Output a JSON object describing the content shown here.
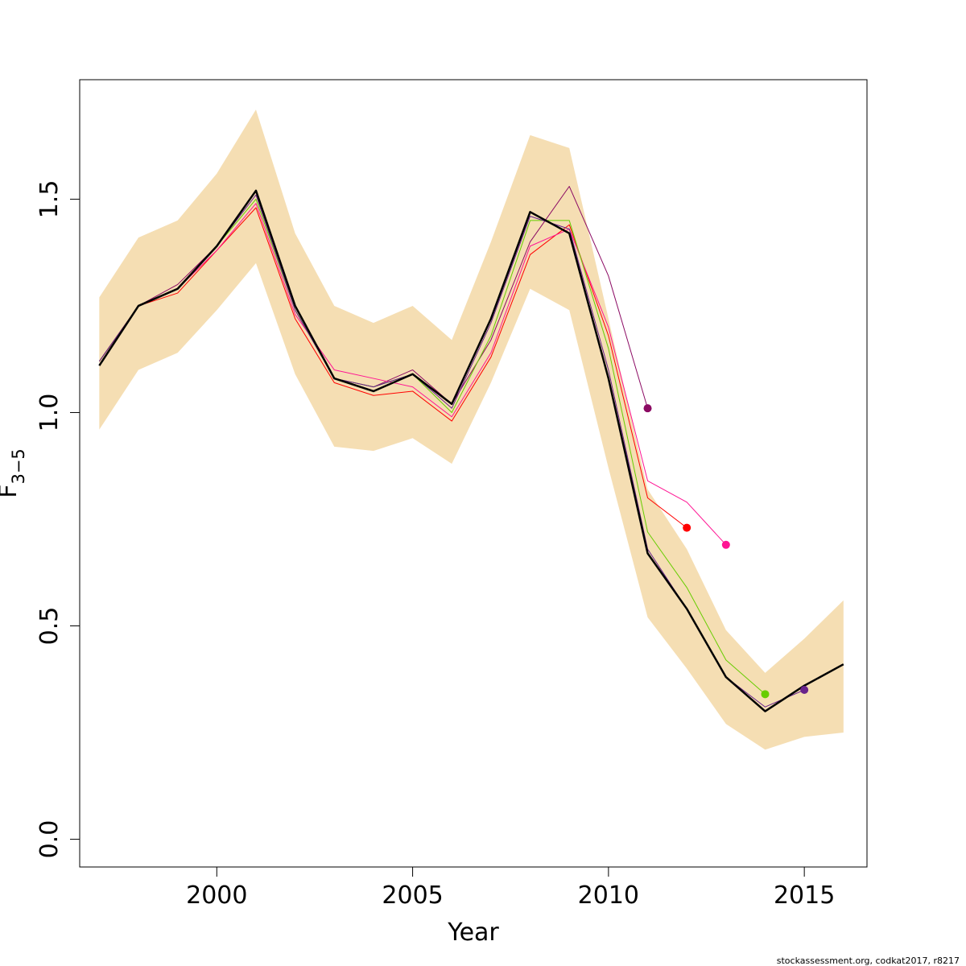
{
  "chart_data": {
    "type": "line",
    "xlabel": "Year",
    "ylabel": "F",
    "ylabel_sub": "3−5",
    "xlim": [
      1996.5,
      2016.6
    ],
    "ylim": [
      -0.065,
      1.78
    ],
    "x_ticks": [
      2000,
      2005,
      2010,
      2015
    ],
    "y_ticks": [
      0.0,
      0.5,
      1.0,
      1.5
    ],
    "y_tick_labels": [
      "0.0",
      "0.5",
      "1.0",
      "1.5"
    ],
    "credit": "stockassessment.org, codkat2017, r8217",
    "band": {
      "color": "#f5deb3",
      "x": [
        1997,
        1998,
        1999,
        2000,
        2001,
        2002,
        2003,
        2004,
        2005,
        2006,
        2007,
        2008,
        2009,
        2010,
        2011,
        2012,
        2013,
        2014,
        2015,
        2016
      ],
      "upper": [
        1.27,
        1.41,
        1.45,
        1.56,
        1.71,
        1.42,
        1.25,
        1.21,
        1.25,
        1.17,
        1.4,
        1.65,
        1.62,
        1.22,
        0.82,
        0.68,
        0.49,
        0.39,
        0.47,
        0.56
      ],
      "lower": [
        0.96,
        1.1,
        1.14,
        1.24,
        1.35,
        1.09,
        0.92,
        0.91,
        0.94,
        0.88,
        1.07,
        1.29,
        1.24,
        0.87,
        0.52,
        0.4,
        0.27,
        0.21,
        0.24,
        0.25
      ]
    },
    "series": [
      {
        "color": "#8b0a63",
        "width": 1,
        "marker": true,
        "x": [
          1997,
          1998,
          1999,
          2000,
          2001,
          2002,
          2003,
          2004,
          2005,
          2006,
          2007,
          2008,
          2009,
          2010,
          2011
        ],
        "values": [
          1.12,
          1.25,
          1.3,
          1.39,
          1.52,
          1.25,
          1.08,
          1.06,
          1.1,
          1.02,
          1.17,
          1.4,
          1.53,
          1.32,
          1.01
        ]
      },
      {
        "color": "#ff0000",
        "width": 1,
        "marker": true,
        "x": [
          1997,
          1998,
          1999,
          2000,
          2001,
          2002,
          2003,
          2004,
          2005,
          2006,
          2007,
          2008,
          2009,
          2010,
          2011,
          2012
        ],
        "values": [
          1.12,
          1.25,
          1.28,
          1.38,
          1.48,
          1.22,
          1.07,
          1.04,
          1.05,
          0.98,
          1.13,
          1.37,
          1.44,
          1.18,
          0.8,
          0.73
        ]
      },
      {
        "color": "#ff1493",
        "width": 1,
        "marker": true,
        "x": [
          1997,
          1998,
          1999,
          2000,
          2001,
          2002,
          2003,
          2004,
          2005,
          2006,
          2007,
          2008,
          2009,
          2010,
          2011,
          2012,
          2013
        ],
        "values": [
          1.12,
          1.25,
          1.29,
          1.38,
          1.49,
          1.23,
          1.1,
          1.08,
          1.06,
          0.99,
          1.14,
          1.39,
          1.43,
          1.2,
          0.84,
          0.79,
          0.69
        ]
      },
      {
        "color": "#66cd00",
        "width": 1,
        "marker": true,
        "x": [
          1997,
          1998,
          1999,
          2000,
          2001,
          2002,
          2003,
          2004,
          2005,
          2006,
          2007,
          2008,
          2009,
          2010,
          2011,
          2012,
          2013,
          2014
        ],
        "values": [
          1.12,
          1.25,
          1.29,
          1.39,
          1.5,
          1.24,
          1.08,
          1.06,
          1.09,
          1.0,
          1.18,
          1.45,
          1.45,
          1.15,
          0.72,
          0.59,
          0.42,
          0.34
        ]
      },
      {
        "color": "#68228b",
        "width": 1,
        "marker": true,
        "x": [
          1997,
          1998,
          1999,
          2000,
          2001,
          2002,
          2003,
          2004,
          2005,
          2006,
          2007,
          2008,
          2009,
          2010,
          2011,
          2012,
          2013,
          2014,
          2015
        ],
        "values": [
          1.12,
          1.25,
          1.29,
          1.39,
          1.51,
          1.24,
          1.08,
          1.06,
          1.09,
          1.01,
          1.21,
          1.46,
          1.43,
          1.1,
          0.68,
          0.54,
          0.38,
          0.31,
          0.35
        ]
      },
      {
        "color": "#000000",
        "width": 2.5,
        "marker": false,
        "x": [
          1997,
          1998,
          1999,
          2000,
          2001,
          2002,
          2003,
          2004,
          2005,
          2006,
          2007,
          2008,
          2009,
          2010,
          2011,
          2012,
          2013,
          2014,
          2015,
          2016
        ],
        "values": [
          1.11,
          1.25,
          1.29,
          1.39,
          1.52,
          1.25,
          1.08,
          1.05,
          1.09,
          1.02,
          1.22,
          1.47,
          1.42,
          1.08,
          0.67,
          0.54,
          0.38,
          0.3,
          0.36,
          0.41
        ]
      }
    ]
  }
}
